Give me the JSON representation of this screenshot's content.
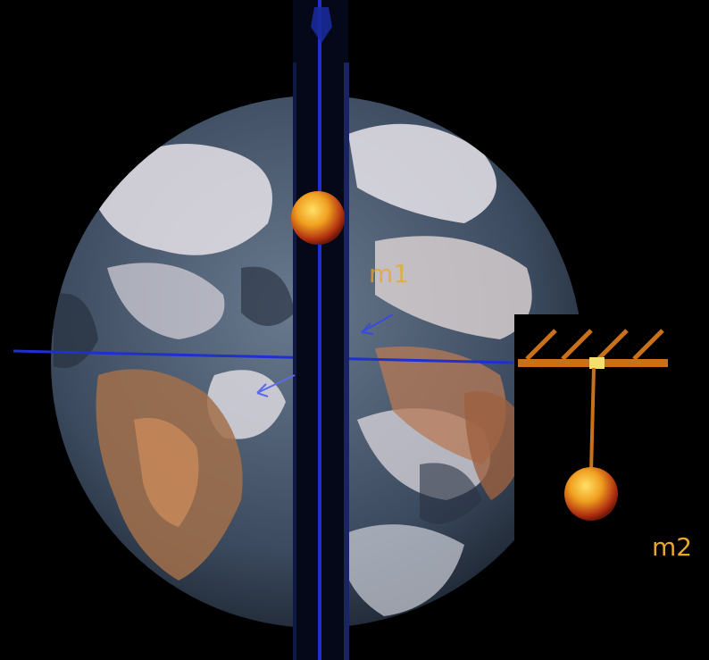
{
  "labels": {
    "m1": "m1",
    "m2": "m2"
  },
  "colors": {
    "background": "#000000",
    "axis_line": "#1f2fd0",
    "tunnel": "#050818",
    "mass_fill": "#e8a020",
    "mass_label": "#e7a72a",
    "pendulum": "#c8701a",
    "ocean": "#3a4a60",
    "cloud": "#e8e4ea",
    "land": "#a06a3c"
  },
  "icons": [
    "earth-globe",
    "ball-mass",
    "hatched-support",
    "pendulum-string"
  ]
}
